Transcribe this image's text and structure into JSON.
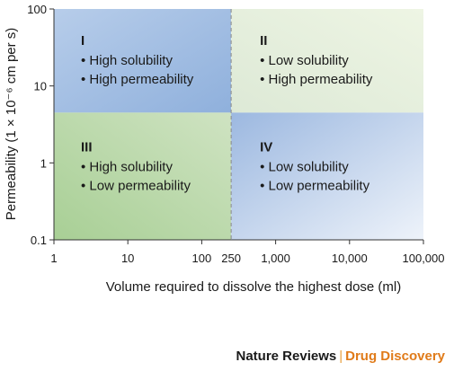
{
  "chart_data": {
    "type": "quadrant",
    "xlabel": "Volume required to dissolve the highest dose (ml)",
    "ylabel": "Permeability (1 × 10⁻⁶ cm per s)",
    "x_scale": "log",
    "y_scale": "log",
    "xlim": [
      1,
      100000
    ],
    "ylim": [
      0.1,
      100
    ],
    "x_ticks": [
      {
        "value": 1,
        "label": "1"
      },
      {
        "value": 10,
        "label": "10"
      },
      {
        "value": 100,
        "label": "100"
      },
      {
        "value": 250,
        "label": "250"
      },
      {
        "value": 1000,
        "label": "1,000"
      },
      {
        "value": 10000,
        "label": "10,000"
      },
      {
        "value": 100000,
        "label": "100,000"
      }
    ],
    "y_ticks": [
      {
        "value": 0.1,
        "label": "0.1"
      },
      {
        "value": 1,
        "label": "1"
      },
      {
        "value": 10,
        "label": "10"
      },
      {
        "value": 100,
        "label": "100"
      }
    ],
    "x_divider": 250,
    "y_divider": 4.5,
    "quadrants": [
      {
        "id": "I",
        "lines": [
          "• High solubility",
          "• High permeability"
        ],
        "color": "#9bb8e0"
      },
      {
        "id": "II",
        "lines": [
          "• Low solubility",
          "• High permeability"
        ],
        "color": "#dcebc8"
      },
      {
        "id": "III",
        "lines": [
          "• High solubility",
          "• Low permeability"
        ],
        "color": "#bcd9a8"
      },
      {
        "id": "IV",
        "lines": [
          "• Low solubility",
          "• Low permeability"
        ],
        "color": "#9bb8e0"
      }
    ]
  },
  "footer": {
    "brand": "Nature Reviews",
    "separator": "|",
    "journal": "Drug Discovery"
  }
}
